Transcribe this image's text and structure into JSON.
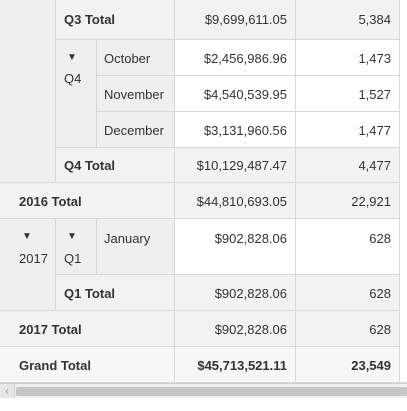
{
  "rows": {
    "q3_total": {
      "label": "Q3 Total",
      "amount": "$9,699,611.05",
      "count": "5,384"
    },
    "october": {
      "label": "October",
      "amount": "$2,456,986.96",
      "count": "1,473"
    },
    "q4_label": "Q4",
    "november": {
      "label": "November",
      "amount": "$4,540,539.95",
      "count": "1,527"
    },
    "december": {
      "label": "December",
      "amount": "$3,131,960.56",
      "count": "1,477"
    },
    "q4_total": {
      "label": "Q4 Total",
      "amount": "$10,129,487.47",
      "count": "4,477"
    },
    "total_2016": {
      "label": "2016 Total",
      "amount": "$44,810,693.05",
      "count": "22,921"
    },
    "year_2017": "2017",
    "q1_label": "Q1",
    "january": {
      "label": "January",
      "amount": "$902,828.06",
      "count": "628"
    },
    "q1_total": {
      "label": "Q1 Total",
      "amount": "$902,828.06",
      "count": "628"
    },
    "total_2017": {
      "label": "2017 Total",
      "amount": "$902,828.06",
      "count": "628"
    },
    "grand_total": {
      "label": "Grand Total",
      "amount": "$45,713,521.11",
      "count": "23,549"
    }
  },
  "icons": {
    "expanded": "▼",
    "scroll_left": "‹"
  }
}
